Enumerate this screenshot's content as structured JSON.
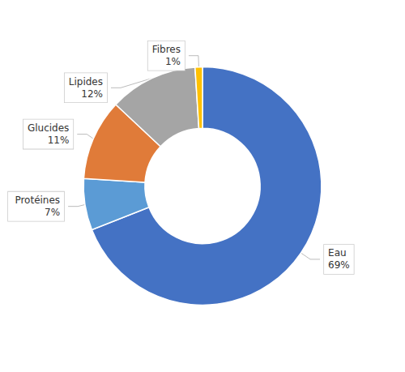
{
  "chart_data": {
    "type": "pie",
    "categories": [
      "Eau",
      "Protéines",
      "Glucides",
      "Lipides",
      "Fibres"
    ],
    "values": [
      69,
      7,
      11,
      12,
      1
    ],
    "value_labels": [
      "69%",
      "7%",
      "11%",
      "12%",
      "1%"
    ],
    "colors": [
      "#4472C4",
      "#5B9BD5",
      "#E07B39",
      "#A5A5A5",
      "#FFC000"
    ],
    "data_labels": true,
    "legend": false
  }
}
